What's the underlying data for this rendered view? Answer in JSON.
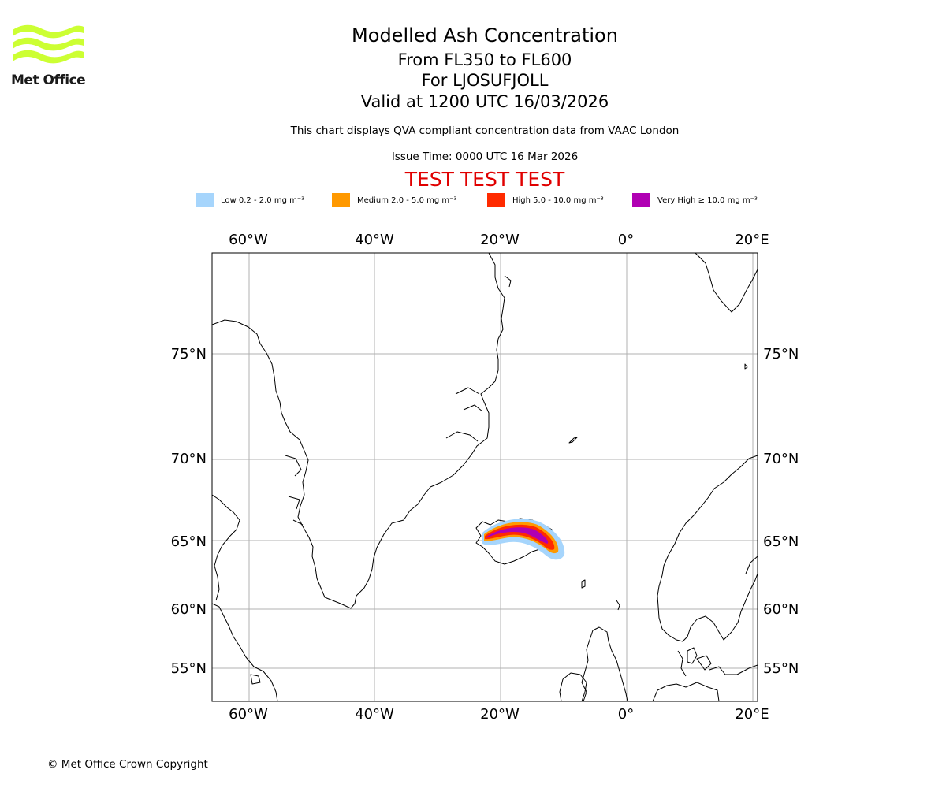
{
  "organization": {
    "name": "Met Office",
    "brand_color": "#ccff33"
  },
  "header": {
    "title": "Modelled Ash Concentration",
    "levels": "From FL350 to FL600",
    "volcano": "For LJOSUFJOLL",
    "validity": "Valid at 1200 UTC 16/03/2026",
    "description": "This chart displays QVA compliant concentration data from VAAC London",
    "issue_time": "Issue Time: 0000 UTC 16 Mar 2026",
    "test_banner": "TEST TEST TEST",
    "test_color": "#e00000"
  },
  "legend": [
    {
      "label": "Low 0.2 - 2.0 mg m⁻³",
      "color": "#a6d5fc"
    },
    {
      "label": "Medium 2.0 - 5.0 mg m⁻³",
      "color": "#ff9900"
    },
    {
      "label": "High 5.0 - 10.0 mg m⁻³",
      "color": "#ff2a00"
    },
    {
      "label": "Very High ≥ 10.0 mg m⁻³",
      "color": "#b000b3"
    }
  ],
  "map": {
    "longitude_labels": [
      "60°W",
      "40°W",
      "20°W",
      "0°",
      "20°E"
    ],
    "latitude_labels": [
      "75°N",
      "70°N",
      "65°N",
      "60°N",
      "55°N"
    ],
    "ash_cloud": {
      "levels": [
        "Low",
        "Medium",
        "High",
        "Very High"
      ],
      "region": "Iceland, extending east-south-east"
    }
  },
  "footer": {
    "copyright": "© Met Office Crown Copyright"
  }
}
